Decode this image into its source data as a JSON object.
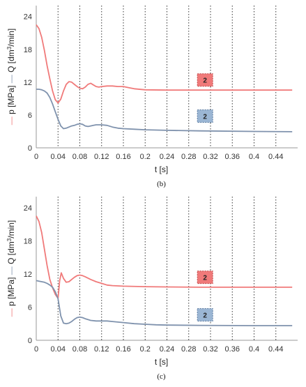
{
  "chart_data": [
    {
      "type": "line",
      "caption": "(b)",
      "xlabel": "t [s]",
      "ylabel_p": "p [MPa]",
      "ylabel_q_prefix": "Q [dm",
      "ylabel_q_sup": "3",
      "ylabel_q_suffix": "/min]",
      "xlim": [
        0,
        0.48
      ],
      "ylim": [
        0,
        26
      ],
      "x_ticks": [
        0,
        0.04,
        0.08,
        0.12,
        0.16,
        0.2,
        0.24,
        0.28,
        0.32,
        0.36,
        0.4,
        0.44
      ],
      "x_tick_labels": [
        "0",
        "0.04",
        "0.08",
        "0.12",
        "0.16",
        "0.2",
        "0.24",
        "0.28",
        "0.32",
        "0.36",
        "0.4",
        "0.44"
      ],
      "y_ticks": [
        0,
        6,
        12,
        18,
        24
      ],
      "y_tick_labels": [
        "0",
        "6",
        "12",
        "18",
        "24"
      ],
      "grid": "vertical-dotted",
      "series": [
        {
          "key": "p",
          "color": "#f07a7a",
          "x": [
            0,
            0.005,
            0.01,
            0.015,
            0.02,
            0.025,
            0.03,
            0.035,
            0.04,
            0.045,
            0.05,
            0.055,
            0.06,
            0.065,
            0.07,
            0.075,
            0.08,
            0.085,
            0.09,
            0.095,
            0.1,
            0.105,
            0.11,
            0.115,
            0.12,
            0.13,
            0.14,
            0.15,
            0.16,
            0.17,
            0.18,
            0.2,
            0.24,
            0.3,
            0.4,
            0.47
          ],
          "y": [
            22.5,
            21.8,
            20.2,
            17.8,
            15.0,
            12.6,
            10.4,
            8.8,
            8.2,
            8.9,
            10.4,
            11.6,
            12.1,
            12.0,
            11.6,
            11.2,
            10.9,
            10.8,
            11.1,
            11.6,
            11.8,
            11.5,
            11.2,
            11.1,
            11.2,
            11.3,
            11.3,
            11.2,
            11.2,
            11.0,
            10.8,
            10.6,
            10.55,
            10.55,
            10.55,
            10.55
          ]
        },
        {
          "key": "Q",
          "color": "#7f92ad",
          "x": [
            0,
            0.005,
            0.01,
            0.015,
            0.02,
            0.025,
            0.03,
            0.035,
            0.04,
            0.045,
            0.05,
            0.055,
            0.06,
            0.065,
            0.07,
            0.075,
            0.08,
            0.085,
            0.09,
            0.095,
            0.1,
            0.105,
            0.11,
            0.115,
            0.12,
            0.13,
            0.14,
            0.15,
            0.16,
            0.18,
            0.2,
            0.24,
            0.3,
            0.4,
            0.47
          ],
          "y": [
            10.7,
            10.7,
            10.6,
            10.4,
            10.0,
            9.2,
            8.0,
            6.6,
            5.2,
            4.0,
            3.5,
            3.6,
            3.8,
            4.0,
            4.1,
            4.3,
            4.4,
            4.3,
            4.0,
            3.9,
            4.0,
            4.1,
            4.2,
            4.2,
            4.2,
            4.1,
            3.8,
            3.6,
            3.5,
            3.4,
            3.3,
            3.2,
            3.1,
            3.0,
            2.95
          ]
        }
      ],
      "badges": [
        {
          "label": "2",
          "x": 0.31,
          "y": 12.4,
          "fill": "#f07a7a",
          "border": "#c04848"
        },
        {
          "label": "2",
          "x": 0.31,
          "y": 5.8,
          "fill": "#9bb6d4",
          "border": "#5a7aa0"
        }
      ]
    },
    {
      "type": "line",
      "caption": "(c)",
      "xlabel": "t [s]",
      "ylabel_p": "p [MPa]",
      "ylabel_q_prefix": "Q [dm",
      "ylabel_q_sup": "3",
      "ylabel_q_suffix": "/min]",
      "xlim": [
        0,
        0.48
      ],
      "ylim": [
        0,
        26
      ],
      "x_ticks": [
        0,
        0.04,
        0.08,
        0.12,
        0.16,
        0.2,
        0.24,
        0.28,
        0.32,
        0.36,
        0.4,
        0.44
      ],
      "x_tick_labels": [
        "0",
        "0.04",
        "0.08",
        "0.12",
        "0.16",
        "0.2",
        "0.24",
        "0.28",
        "0.32",
        "0.36",
        "0.4",
        "0.44"
      ],
      "y_ticks": [
        0,
        6,
        12,
        18,
        24
      ],
      "y_tick_labels": [
        "0",
        "6",
        "12",
        "18",
        "24"
      ],
      "grid": "vertical-dotted",
      "series": [
        {
          "key": "p",
          "color": "#f07a7a",
          "x": [
            0,
            0.005,
            0.01,
            0.015,
            0.02,
            0.025,
            0.03,
            0.035,
            0.04,
            0.043,
            0.046,
            0.05,
            0.055,
            0.06,
            0.065,
            0.07,
            0.075,
            0.08,
            0.085,
            0.09,
            0.1,
            0.11,
            0.12,
            0.13,
            0.14,
            0.16,
            0.2,
            0.24,
            0.3,
            0.4,
            0.47
          ],
          "y": [
            22.5,
            21.5,
            19.5,
            16.5,
            13.5,
            11.0,
            9.5,
            8.3,
            7.6,
            10.8,
            12.2,
            11.2,
            10.5,
            10.6,
            11.0,
            11.4,
            11.7,
            11.8,
            11.7,
            11.5,
            11.0,
            10.6,
            10.3,
            10.0,
            9.9,
            9.8,
            9.7,
            9.65,
            9.6,
            9.6,
            9.6
          ]
        },
        {
          "key": "Q",
          "color": "#7f92ad",
          "x": [
            0,
            0.005,
            0.01,
            0.015,
            0.02,
            0.025,
            0.03,
            0.035,
            0.04,
            0.045,
            0.05,
            0.055,
            0.06,
            0.065,
            0.07,
            0.075,
            0.08,
            0.085,
            0.09,
            0.1,
            0.11,
            0.12,
            0.13,
            0.14,
            0.16,
            0.18,
            0.2,
            0.22,
            0.24,
            0.3,
            0.4,
            0.47
          ],
          "y": [
            10.8,
            10.7,
            10.6,
            10.5,
            10.3,
            10.0,
            9.6,
            8.8,
            7.5,
            4.4,
            3.1,
            3.0,
            3.1,
            3.4,
            3.8,
            4.1,
            4.2,
            4.1,
            3.9,
            3.6,
            3.5,
            3.5,
            3.5,
            3.4,
            3.2,
            3.0,
            2.9,
            2.8,
            2.75,
            2.7,
            2.65,
            2.65
          ]
        }
      ],
      "badges": [
        {
          "label": "2",
          "x": 0.31,
          "y": 11.4,
          "fill": "#f07a7a",
          "border": "#c04848"
        },
        {
          "label": "2",
          "x": 0.31,
          "y": 4.6,
          "fill": "#9bb6d4",
          "border": "#5a7aa0"
        }
      ]
    }
  ]
}
